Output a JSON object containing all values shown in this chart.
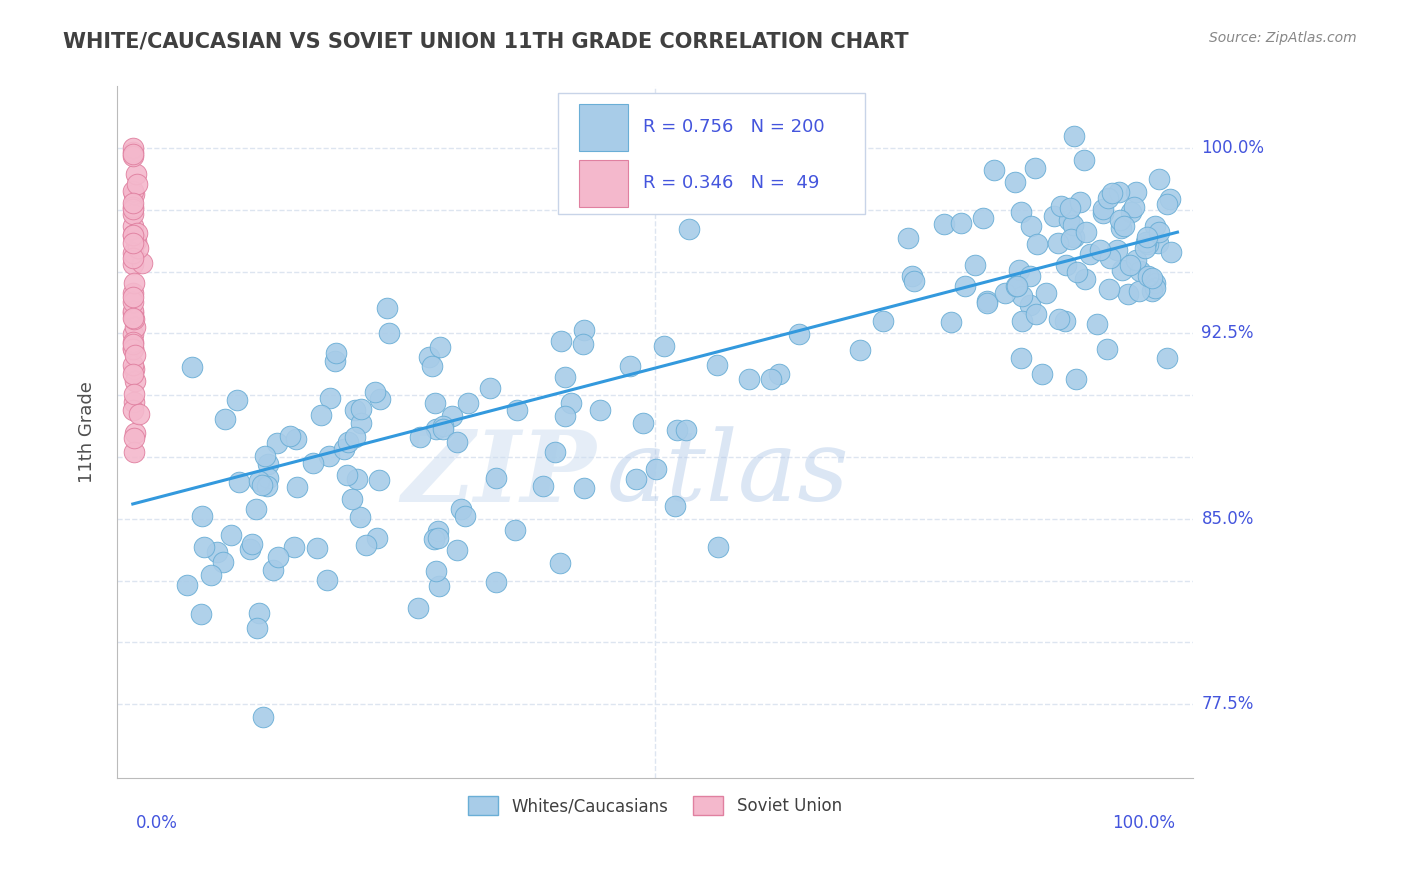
{
  "title": "WHITE/CAUCASIAN VS SOVIET UNION 11TH GRADE CORRELATION CHART",
  "ylabel": "11th Grade",
  "source_text": "Source: ZipAtlas.com",
  "watermark_zip": "ZIP",
  "watermark_atlas": "atlas",
  "legend": {
    "blue_label": "Whites/Caucasians",
    "pink_label": "Soviet Union",
    "blue_R": "0.756",
    "blue_N": "200",
    "pink_R": "0.346",
    "pink_N": "49"
  },
  "yticks": [
    0.775,
    0.8,
    0.825,
    0.85,
    0.875,
    0.9,
    0.925,
    0.95,
    0.975,
    1.0
  ],
  "ytick_labels": [
    "77.5%",
    "",
    "",
    "85.0%",
    "",
    "",
    "92.5%",
    "",
    "",
    "100.0%"
  ],
  "ylim": [
    0.745,
    1.025
  ],
  "xlim": [
    -0.015,
    1.015
  ],
  "blue_color": "#a8cce8",
  "blue_edge": "#6aaed6",
  "pink_color": "#f4b8cc",
  "pink_edge": "#e080a0",
  "line_color": "#3399dd",
  "title_color": "#404040",
  "axis_label_color": "#4455dd",
  "grid_color": "#dde5f0",
  "background_color": "#ffffff",
  "seed": 7,
  "blue_N": 200,
  "pink_N": 49,
  "line_x0": 0.0,
  "line_y0": 0.856,
  "line_x1": 1.0,
  "line_y1": 0.966
}
